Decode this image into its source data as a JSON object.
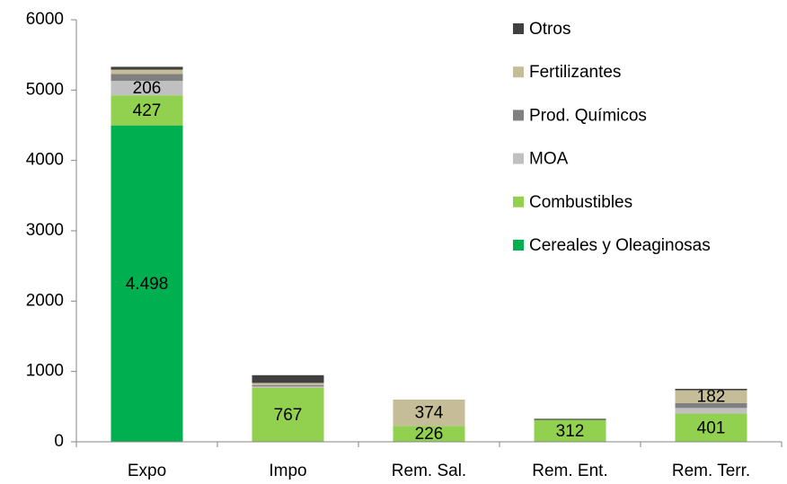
{
  "chart_data": {
    "type": "stacked_bar",
    "categories": [
      "Expo",
      "Impo",
      "Rem. Sal.",
      "Rem. Ent.",
      "Rem. Terr."
    ],
    "series": [
      {
        "name": "Cereales y  Oleaginosas",
        "color": "#00b050",
        "values": [
          4498,
          0,
          0,
          0,
          0
        ],
        "value_labels": [
          "4.498",
          null,
          null,
          null,
          null
        ]
      },
      {
        "name": "Combustibles",
        "color": "#92d050",
        "values": [
          427,
          767,
          226,
          312,
          401
        ],
        "value_labels": [
          427,
          767,
          226,
          312,
          401
        ]
      },
      {
        "name": "MOA",
        "color": "#c0c0c0",
        "values": [
          206,
          20,
          0,
          0,
          80
        ],
        "value_labels": [
          206,
          null,
          null,
          null,
          null
        ]
      },
      {
        "name": "Prod. Químicos",
        "color": "#808080",
        "values": [
          100,
          20,
          0,
          0,
          70
        ]
      },
      {
        "name": "Fertilizantes",
        "color": "#c4bd97",
        "values": [
          60,
          30,
          374,
          0,
          182
        ],
        "value_labels": [
          null,
          null,
          374,
          null,
          182
        ]
      },
      {
        "name": "Otros",
        "color": "#404040",
        "values": [
          40,
          110,
          0,
          15,
          20
        ]
      }
    ],
    "ylim": [
      0,
      6000
    ],
    "yticks": [
      0,
      1000,
      2000,
      3000,
      4000,
      5000,
      6000
    ],
    "legend": "right"
  }
}
